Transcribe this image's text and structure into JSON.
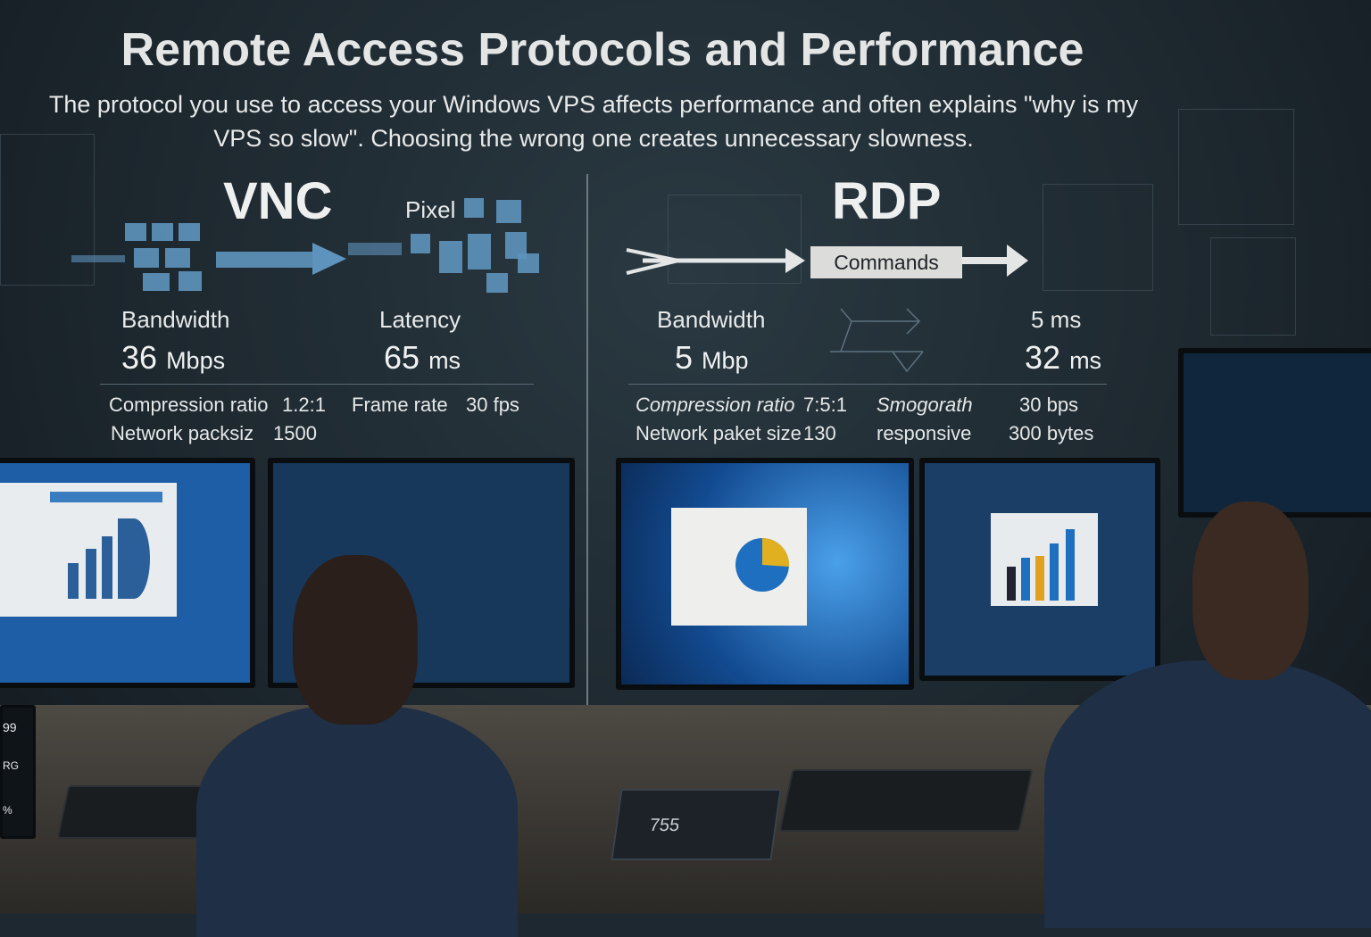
{
  "title": "Remote Access Protocols and Performance",
  "subtitle": [
    "The protocol you use to access your Windows VPS affects performance and often explains \"why is my",
    "VPS so slow\". Choosing the wrong one creates unnecessary slowness."
  ],
  "vnc": {
    "heading": "VNC",
    "pixel_label": "Pixel",
    "bandwidth": {
      "label": "Bandwidth",
      "value": "36",
      "unit": "Mbps"
    },
    "latency": {
      "label": "Latency",
      "value": "65",
      "unit": "ms"
    },
    "rows": [
      [
        "Compression ratio",
        "1.2:1",
        "Frame rate",
        "30 fps"
      ],
      [
        "Network packsiz",
        "1500",
        "",
        ""
      ]
    ]
  },
  "rdp": {
    "heading": "RDP",
    "commands_label": "Commands",
    "bandwidth": {
      "label": "Bandwidth",
      "value": "5",
      "unit": "Mbp"
    },
    "latency": {
      "label": "5 ms",
      "value": "32",
      "unit": "ms"
    },
    "rows": [
      [
        "Compression ratio",
        "7:5:1",
        "Smogorath",
        "30 bps"
      ],
      [
        "Network paket size",
        "130",
        "responsive",
        "300 bytes"
      ]
    ]
  },
  "scene": {
    "device_readout": "755",
    "side_readouts": [
      "99",
      "RG",
      "%"
    ]
  },
  "colors": {
    "background": "#1d2830",
    "pixel_blue": "#5e93bd",
    "command_box": "#dcdcda",
    "screen_blue": "#1f5fa8",
    "chart_yellow": "#e0b020"
  }
}
